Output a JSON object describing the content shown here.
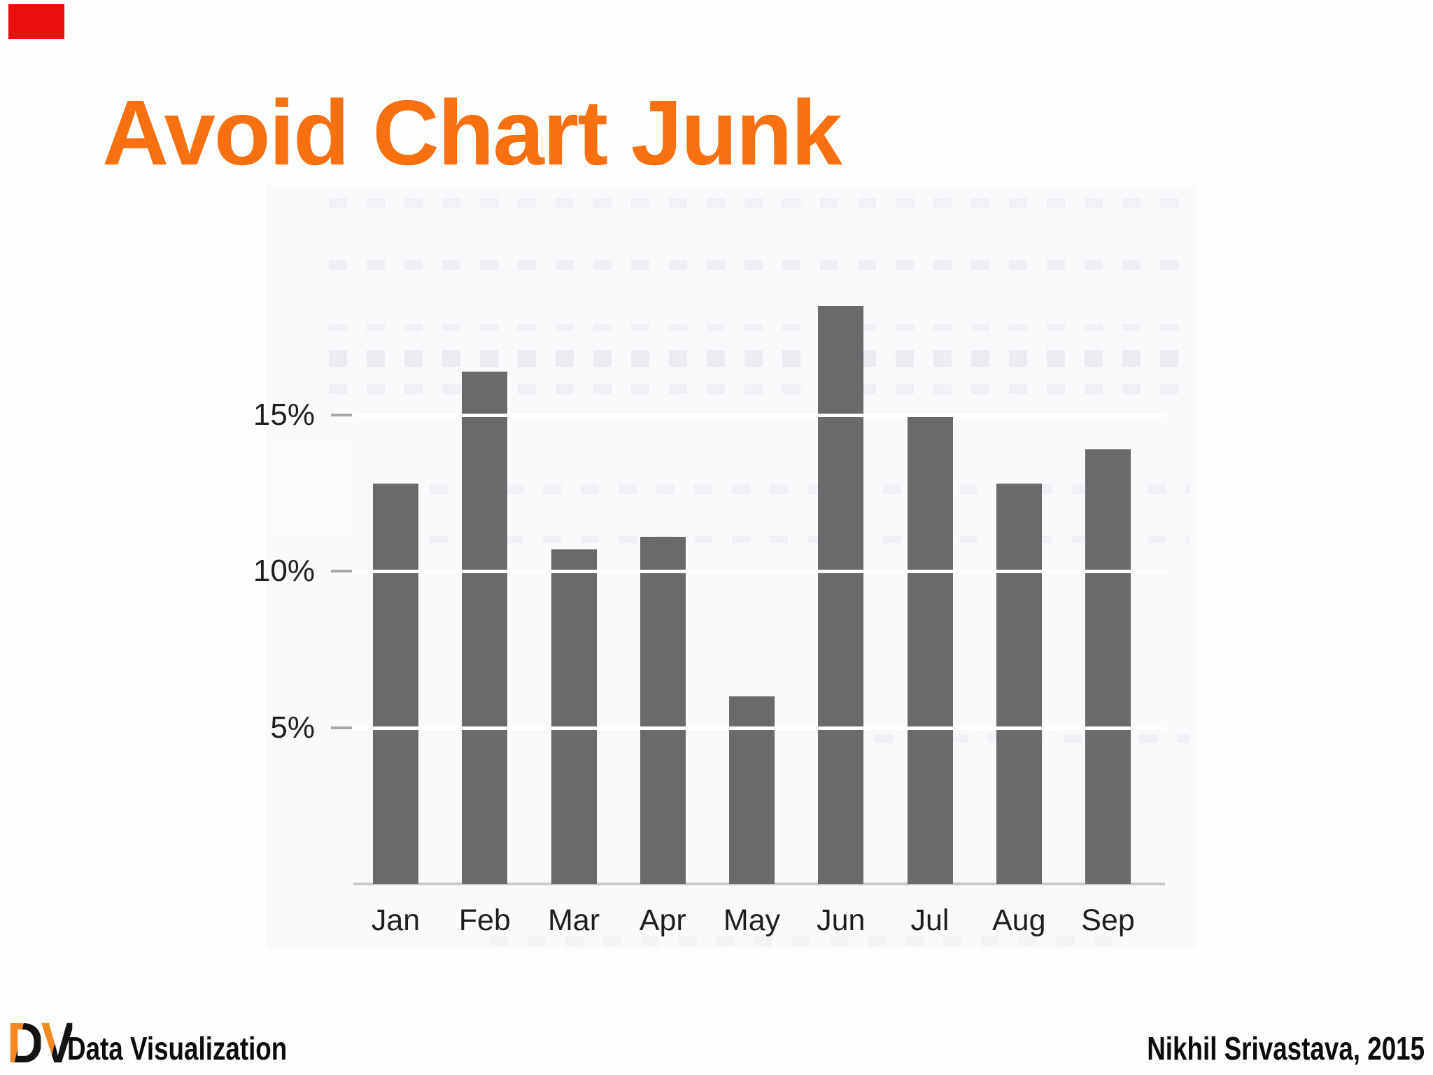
{
  "slide": {
    "title": "Avoid Chart Junk",
    "title_color": "#F8700F",
    "marker_color": "#E8100C"
  },
  "chart_data": {
    "type": "bar",
    "title": "",
    "xlabel": "",
    "ylabel": "",
    "categories": [
      "Jan",
      "Feb",
      "Mar",
      "Apr",
      "May",
      "Jun",
      "Jul",
      "Aug",
      "Sep"
    ],
    "values": [
      12.8,
      16.4,
      10.7,
      11.1,
      6.0,
      18.5,
      15.0,
      12.8,
      13.9
    ],
    "unit": "%",
    "y_ticks": [
      "15%",
      "10%",
      "5%"
    ],
    "y_tick_values": [
      15,
      10,
      5
    ],
    "ylim": [
      0,
      20
    ],
    "grid": "white-lines-over-bars",
    "bar_color": "#6A6A6C",
    "gridline_color": "#FFFFFF",
    "axis_line_color": "#C9C9C9",
    "tick_dash_color": "#A7A7A7",
    "label_color": "#1E1E1E"
  },
  "footer": {
    "logo_letters": [
      "D",
      "V"
    ],
    "logo_orange": "#F28A21",
    "logo_black": "#141414",
    "course_label": "Data Visualization",
    "credit_label": "Nikhil Srivastava, 2015"
  }
}
